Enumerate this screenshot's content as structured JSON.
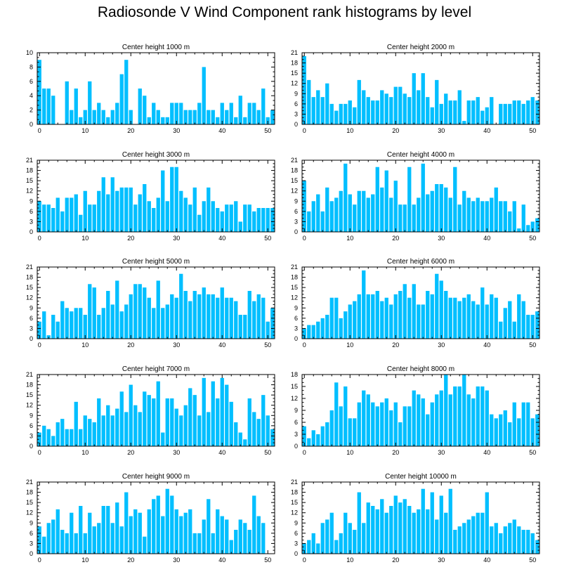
{
  "title": "Radiosonde V Wind Component rank histograms by level",
  "colors": {
    "bar": "#00bfff",
    "bar_edge": "#ffffff",
    "axis": "#000000"
  },
  "chart_data": [
    {
      "type": "bar",
      "title": "Center height 1000 m",
      "xlim": [
        -0.5,
        51.5
      ],
      "ylim": [
        0,
        10
      ],
      "xticks": [
        0,
        10,
        20,
        30,
        40,
        50
      ],
      "yticks": [
        0,
        2,
        4,
        6,
        8,
        10
      ],
      "x": [
        0,
        1,
        2,
        3,
        4,
        5,
        6,
        7,
        8,
        9,
        10,
        11,
        12,
        13,
        14,
        15,
        16,
        17,
        18,
        19,
        20,
        21,
        22,
        23,
        24,
        25,
        26,
        27,
        28,
        29,
        30,
        31,
        32,
        33,
        34,
        35,
        36,
        37,
        38,
        39,
        40,
        41,
        42,
        43,
        44,
        45,
        46,
        47,
        48,
        49,
        50,
        51
      ],
      "values": [
        9,
        5,
        5,
        4,
        0,
        0,
        6,
        2,
        5,
        1,
        2,
        6,
        2,
        3,
        2,
        1,
        2,
        3,
        7,
        9,
        2,
        0,
        5,
        4,
        1,
        3,
        2,
        1,
        1,
        3,
        3,
        3,
        2,
        2,
        2,
        3,
        8,
        2,
        2,
        1,
        3,
        2,
        3,
        1,
        4,
        1,
        3,
        3,
        2,
        5,
        1,
        2
      ]
    },
    {
      "type": "bar",
      "title": "Center height 2000 m",
      "xlim": [
        -0.5,
        51.5
      ],
      "ylim": [
        0,
        21
      ],
      "xticks": [
        0,
        10,
        20,
        30,
        40,
        50
      ],
      "yticks": [
        0,
        3,
        6,
        9,
        12,
        15,
        18,
        21
      ],
      "x": [
        0,
        1,
        2,
        3,
        4,
        5,
        6,
        7,
        8,
        9,
        10,
        11,
        12,
        13,
        14,
        15,
        16,
        17,
        18,
        19,
        20,
        21,
        22,
        23,
        24,
        25,
        26,
        27,
        28,
        29,
        30,
        31,
        32,
        33,
        34,
        35,
        36,
        37,
        38,
        39,
        40,
        41,
        42,
        43,
        44,
        45,
        46,
        47,
        48,
        49,
        50,
        51
      ],
      "values": [
        20,
        13,
        8,
        10,
        8,
        12,
        6,
        4,
        6,
        6,
        7,
        5,
        13,
        10,
        8,
        7,
        7,
        10,
        9,
        8,
        11,
        11,
        9,
        8,
        15,
        10,
        15,
        8,
        5,
        13,
        6,
        9,
        7,
        7,
        10,
        1,
        7,
        7,
        8,
        4,
        5,
        8,
        0,
        6,
        6,
        6,
        7,
        7,
        6,
        7,
        8,
        7
      ]
    },
    {
      "type": "bar",
      "title": "Center height 3000 m",
      "xlim": [
        -0.5,
        51.5
      ],
      "ylim": [
        0,
        21
      ],
      "xticks": [
        0,
        10,
        20,
        30,
        40,
        50
      ],
      "yticks": [
        0,
        3,
        6,
        9,
        12,
        15,
        18,
        21
      ],
      "x": [
        0,
        1,
        2,
        3,
        4,
        5,
        6,
        7,
        8,
        9,
        10,
        11,
        12,
        13,
        14,
        15,
        16,
        17,
        18,
        19,
        20,
        21,
        22,
        23,
        24,
        25,
        26,
        27,
        28,
        29,
        30,
        31,
        32,
        33,
        34,
        35,
        36,
        37,
        38,
        39,
        40,
        41,
        42,
        43,
        44,
        45,
        46,
        47,
        48,
        49,
        50,
        51
      ],
      "values": [
        9,
        8,
        8,
        7,
        10,
        6,
        10,
        10,
        11,
        5,
        12,
        8,
        8,
        12,
        16,
        11,
        16,
        12,
        13,
        13,
        13,
        8,
        11,
        14,
        9,
        7,
        10,
        18,
        9,
        19,
        19,
        12,
        10,
        8,
        13,
        5,
        9,
        13,
        9,
        7,
        6,
        8,
        8,
        9,
        3,
        8,
        8,
        6,
        7,
        7,
        7,
        7
      ]
    },
    {
      "type": "bar",
      "title": "Center height 4000 m",
      "xlim": [
        -0.5,
        51.5
      ],
      "ylim": [
        0,
        21
      ],
      "xticks": [
        0,
        10,
        20,
        30,
        40,
        50
      ],
      "yticks": [
        0,
        3,
        6,
        9,
        12,
        15,
        18,
        21
      ],
      "x": [
        0,
        1,
        2,
        3,
        4,
        5,
        6,
        7,
        8,
        9,
        10,
        11,
        12,
        13,
        14,
        15,
        16,
        17,
        18,
        19,
        20,
        21,
        22,
        23,
        24,
        25,
        26,
        27,
        28,
        29,
        30,
        31,
        32,
        33,
        34,
        35,
        36,
        37,
        38,
        39,
        40,
        41,
        42,
        43,
        44,
        45,
        46,
        47,
        48,
        49,
        50,
        51
      ],
      "values": [
        15,
        6,
        9,
        11,
        6,
        13,
        9,
        10,
        12,
        20,
        11,
        8,
        12,
        12,
        10,
        11,
        19,
        13,
        18,
        10,
        15,
        8,
        8,
        19,
        8,
        10,
        20,
        11,
        12,
        14,
        14,
        13,
        10,
        19,
        8,
        12,
        10,
        9,
        10,
        9,
        9,
        10,
        13,
        9,
        9,
        6,
        9,
        1,
        8,
        2,
        3,
        4
      ]
    },
    {
      "type": "bar",
      "title": "Center height 5000 m",
      "xlim": [
        -0.5,
        51.5
      ],
      "ylim": [
        0,
        21
      ],
      "xticks": [
        0,
        10,
        20,
        30,
        40,
        50
      ],
      "yticks": [
        0,
        3,
        6,
        9,
        12,
        15,
        18,
        21
      ],
      "x": [
        0,
        1,
        2,
        3,
        4,
        5,
        6,
        7,
        8,
        9,
        10,
        11,
        12,
        13,
        14,
        15,
        16,
        17,
        18,
        19,
        20,
        21,
        22,
        23,
        24,
        25,
        26,
        27,
        28,
        29,
        30,
        31,
        32,
        33,
        34,
        35,
        36,
        37,
        38,
        39,
        40,
        41,
        42,
        43,
        44,
        45,
        46,
        47,
        48,
        49,
        50,
        51
      ],
      "values": [
        5,
        8,
        1,
        7,
        5,
        11,
        9,
        8,
        9,
        9,
        7,
        16,
        15,
        7,
        9,
        14,
        10,
        17,
        8,
        10,
        13,
        16,
        16,
        15,
        12,
        9,
        17,
        9,
        10,
        13,
        12,
        19,
        14,
        11,
        14,
        13,
        15,
        13,
        13,
        12,
        15,
        12,
        12,
        11,
        7,
        7,
        14,
        11,
        13,
        12,
        5,
        9
      ]
    },
    {
      "type": "bar",
      "title": "Center height 6000 m",
      "xlim": [
        -0.5,
        51.5
      ],
      "ylim": [
        0,
        21
      ],
      "xticks": [
        0,
        10,
        20,
        30,
        40,
        50
      ],
      "yticks": [
        0,
        3,
        6,
        9,
        12,
        15,
        18,
        21
      ],
      "x": [
        0,
        1,
        2,
        3,
        4,
        5,
        6,
        7,
        8,
        9,
        10,
        11,
        12,
        13,
        14,
        15,
        16,
        17,
        18,
        19,
        20,
        21,
        22,
        23,
        24,
        25,
        26,
        27,
        28,
        29,
        30,
        31,
        32,
        33,
        34,
        35,
        36,
        37,
        38,
        39,
        40,
        41,
        42,
        43,
        44,
        45,
        46,
        47,
        48,
        49,
        50,
        51
      ],
      "values": [
        3,
        4,
        4,
        5,
        6,
        7,
        12,
        12,
        6,
        8,
        10,
        11,
        13,
        20,
        13,
        13,
        14,
        11,
        12,
        10,
        13,
        14,
        16,
        12,
        16,
        10,
        10,
        14,
        13,
        19,
        17,
        14,
        12,
        12,
        11,
        12,
        13,
        11,
        10,
        15,
        10,
        13,
        12,
        5,
        9,
        11,
        5,
        13,
        11,
        7,
        7,
        8
      ]
    },
    {
      "type": "bar",
      "title": "Center height 7000 m",
      "xlim": [
        -0.5,
        51.5
      ],
      "ylim": [
        0,
        21
      ],
      "xticks": [
        0,
        10,
        20,
        30,
        40,
        50
      ],
      "yticks": [
        0,
        3,
        6,
        9,
        12,
        15,
        18,
        21
      ],
      "x": [
        0,
        1,
        2,
        3,
        4,
        5,
        6,
        7,
        8,
        9,
        10,
        11,
        12,
        13,
        14,
        15,
        16,
        17,
        18,
        19,
        20,
        21,
        22,
        23,
        24,
        25,
        26,
        27,
        28,
        29,
        30,
        31,
        32,
        33,
        34,
        35,
        36,
        37,
        38,
        39,
        40,
        41,
        42,
        43,
        44,
        45,
        46,
        47,
        48,
        49,
        50,
        51
      ],
      "values": [
        4,
        6,
        5,
        3,
        7,
        8,
        5,
        5,
        13,
        5,
        9,
        8,
        7,
        14,
        9,
        12,
        9,
        11,
        16,
        10,
        18,
        12,
        10,
        16,
        15,
        14,
        19,
        4,
        14,
        14,
        11,
        9,
        12,
        17,
        15,
        9,
        20,
        10,
        19,
        14,
        20,
        18,
        13,
        7,
        4,
        2,
        14,
        10,
        8,
        15,
        9,
        5
      ]
    },
    {
      "type": "bar",
      "title": "Center height 8000 m",
      "xlim": [
        -0.5,
        51.5
      ],
      "ylim": [
        0,
        18
      ],
      "xticks": [
        0,
        10,
        20,
        30,
        40,
        50
      ],
      "yticks": [
        0,
        3,
        6,
        9,
        12,
        15,
        18
      ],
      "x": [
        0,
        1,
        2,
        3,
        4,
        5,
        6,
        7,
        8,
        9,
        10,
        11,
        12,
        13,
        14,
        15,
        16,
        17,
        18,
        19,
        20,
        21,
        22,
        23,
        24,
        25,
        26,
        27,
        28,
        29,
        30,
        31,
        32,
        33,
        34,
        35,
        36,
        37,
        38,
        39,
        40,
        41,
        42,
        43,
        44,
        45,
        46,
        47,
        48,
        49,
        50,
        51
      ],
      "values": [
        5,
        2,
        4,
        3,
        5,
        6,
        9,
        16,
        10,
        15,
        7,
        7,
        11,
        14,
        13,
        11,
        10,
        11,
        12,
        9,
        11,
        6,
        10,
        10,
        14,
        13,
        12,
        8,
        11,
        13,
        14,
        18,
        13,
        15,
        15,
        18,
        13,
        12,
        15,
        15,
        14,
        8,
        7,
        8,
        9,
        6,
        11,
        7,
        11,
        11,
        7,
        8
      ]
    },
    {
      "type": "bar",
      "title": "Center height 9000 m",
      "xlim": [
        -0.5,
        51.5
      ],
      "ylim": [
        0,
        21
      ],
      "xticks": [
        0,
        10,
        20,
        30,
        40,
        50
      ],
      "yticks": [
        0,
        3,
        6,
        9,
        12,
        15,
        18,
        21
      ],
      "x": [
        0,
        1,
        2,
        3,
        4,
        5,
        6,
        7,
        8,
        9,
        10,
        11,
        12,
        13,
        14,
        15,
        16,
        17,
        18,
        19,
        20,
        21,
        22,
        23,
        24,
        25,
        26,
        27,
        28,
        29,
        30,
        31,
        32,
        33,
        34,
        35,
        36,
        37,
        38,
        39,
        40,
        41,
        42,
        43,
        44,
        45,
        46,
        47,
        48,
        49,
        50,
        51
      ],
      "values": [
        8,
        5,
        9,
        10,
        13,
        7,
        6,
        12,
        6,
        14,
        6,
        12,
        8,
        9,
        14,
        14,
        9,
        15,
        8,
        18,
        11,
        13,
        12,
        5,
        13,
        16,
        17,
        11,
        19,
        17,
        13,
        11,
        12,
        13,
        6,
        6,
        10,
        16,
        6,
        13,
        11,
        10,
        4,
        7,
        10,
        9,
        7,
        17,
        11,
        9,
        0,
        0
      ]
    },
    {
      "type": "bar",
      "title": "Center height 10000 m",
      "xlim": [
        -0.5,
        51.5
      ],
      "ylim": [
        0,
        21
      ],
      "xticks": [
        0,
        10,
        20,
        30,
        40,
        50
      ],
      "yticks": [
        0,
        3,
        6,
        9,
        12,
        15,
        18,
        21
      ],
      "x": [
        0,
        1,
        2,
        3,
        4,
        5,
        6,
        7,
        8,
        9,
        10,
        11,
        12,
        13,
        14,
        15,
        16,
        17,
        18,
        19,
        20,
        21,
        22,
        23,
        24,
        25,
        26,
        27,
        28,
        29,
        30,
        31,
        32,
        33,
        34,
        35,
        36,
        37,
        38,
        39,
        40,
        41,
        42,
        43,
        44,
        45,
        46,
        47,
        48,
        49,
        50,
        51
      ],
      "values": [
        3,
        4,
        6,
        3,
        9,
        10,
        12,
        4,
        6,
        12,
        9,
        7,
        18,
        9,
        15,
        14,
        13,
        16,
        12,
        14,
        17,
        15,
        16,
        14,
        12,
        13,
        19,
        13,
        18,
        10,
        17,
        12,
        19,
        7,
        8,
        9,
        10,
        11,
        12,
        12,
        18,
        8,
        9,
        6,
        8,
        9,
        10,
        8,
        7,
        7,
        6,
        4
      ]
    }
  ]
}
